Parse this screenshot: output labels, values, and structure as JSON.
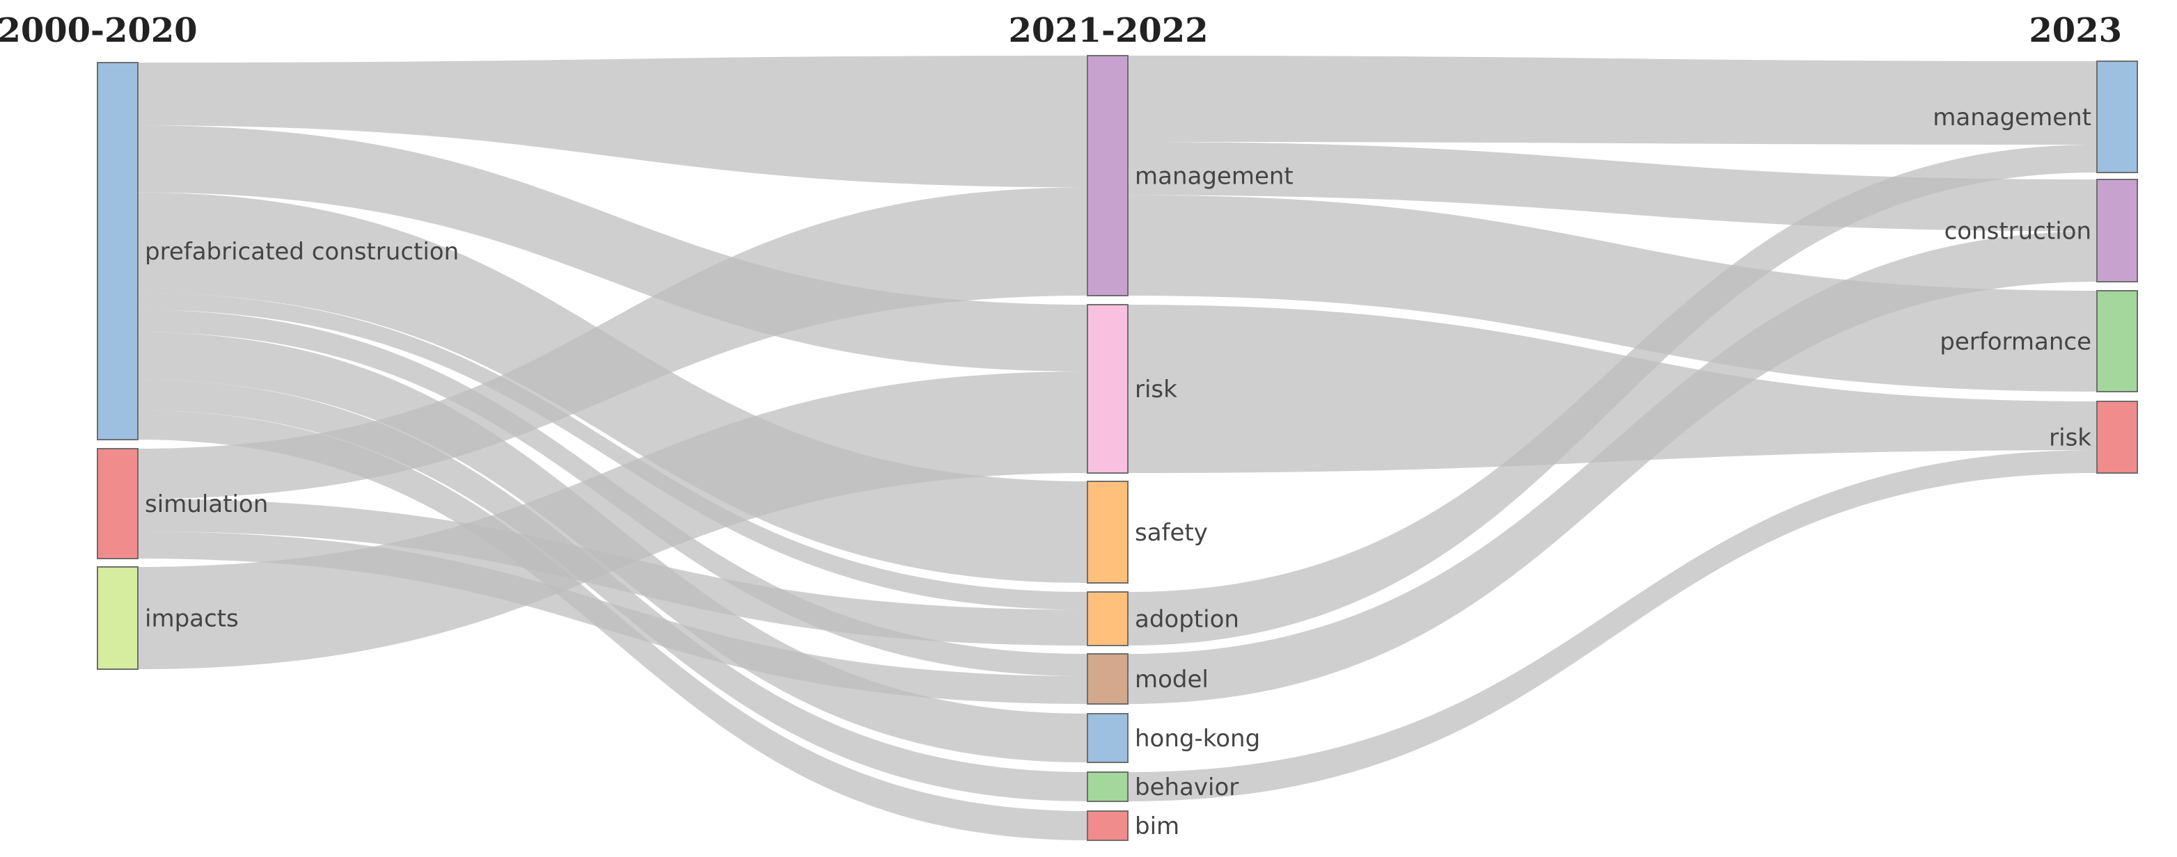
{
  "columns": [
    {
      "key": "c1",
      "title": "2000-2020"
    },
    {
      "key": "c2",
      "title": "2021-2022"
    },
    {
      "key": "c3",
      "title": "2023"
    }
  ],
  "nodes": [
    {
      "id": "pc",
      "col": "c1",
      "label": "prefabricated construction",
      "color": "#9dbfe0"
    },
    {
      "id": "sim",
      "col": "c1",
      "label": "simulation",
      "color": "#f08c8c"
    },
    {
      "id": "imp",
      "col": "c1",
      "label": "impacts",
      "color": "#d6ec9f"
    },
    {
      "id": "mgmt2",
      "col": "c2",
      "label": "management",
      "color": "#c8a2cf"
    },
    {
      "id": "risk2",
      "col": "c2",
      "label": "risk",
      "color": "#f9c0e0"
    },
    {
      "id": "safe",
      "col": "c2",
      "label": "safety",
      "color": "#ffc07c"
    },
    {
      "id": "adop",
      "col": "c2",
      "label": "adoption",
      "color": "#ffc07c"
    },
    {
      "id": "model",
      "col": "c2",
      "label": "model",
      "color": "#d3a88c"
    },
    {
      "id": "hk",
      "col": "c2",
      "label": "hong-kong",
      "color": "#9dbfe0"
    },
    {
      "id": "beh",
      "col": "c2",
      "label": "behavior",
      "color": "#a3d79b"
    },
    {
      "id": "bim",
      "col": "c2",
      "label": "bim",
      "color": "#f08c8c"
    },
    {
      "id": "mgmt3",
      "col": "c3",
      "label": "management",
      "color": "#9dbfe0"
    },
    {
      "id": "cons3",
      "col": "c3",
      "label": "construction",
      "color": "#c8a2cf"
    },
    {
      "id": "perf3",
      "col": "c3",
      "label": "performance",
      "color": "#a3d79b"
    },
    {
      "id": "risk3",
      "col": "c3",
      "label": "risk",
      "color": "#f08c8c"
    }
  ],
  "links": [
    {
      "source": "pc",
      "target": "mgmt2",
      "value": 45
    },
    {
      "source": "pc",
      "target": "risk2",
      "value": 48
    },
    {
      "source": "pc",
      "target": "safe",
      "value": 72
    },
    {
      "source": "pc",
      "target": "adop",
      "value": 12
    },
    {
      "source": "pc",
      "target": "model",
      "value": 16
    },
    {
      "source": "pc",
      "target": "hk",
      "value": 34
    },
    {
      "source": "pc",
      "target": "beh",
      "value": 22
    },
    {
      "source": "pc",
      "target": "bim",
      "value": 21
    },
    {
      "source": "sim",
      "target": "mgmt2",
      "value": 37
    },
    {
      "source": "sim",
      "target": "adop",
      "value": 24
    },
    {
      "source": "sim",
      "target": "model",
      "value": 20
    },
    {
      "source": "imp",
      "target": "risk2",
      "value": 73
    },
    {
      "source": "mgmt2",
      "target": "mgmt3",
      "value": 60
    },
    {
      "source": "mgmt2",
      "target": "cons3",
      "value": 37
    },
    {
      "source": "mgmt2",
      "target": "perf3",
      "value": 70
    },
    {
      "source": "risk2",
      "target": "risk3",
      "value": 47
    },
    {
      "source": "adop",
      "target": "mgmt3",
      "value": 20
    },
    {
      "source": "model",
      "target": "cons3",
      "value": 36
    },
    {
      "source": "beh",
      "target": "risk3",
      "value": 22
    }
  ]
}
